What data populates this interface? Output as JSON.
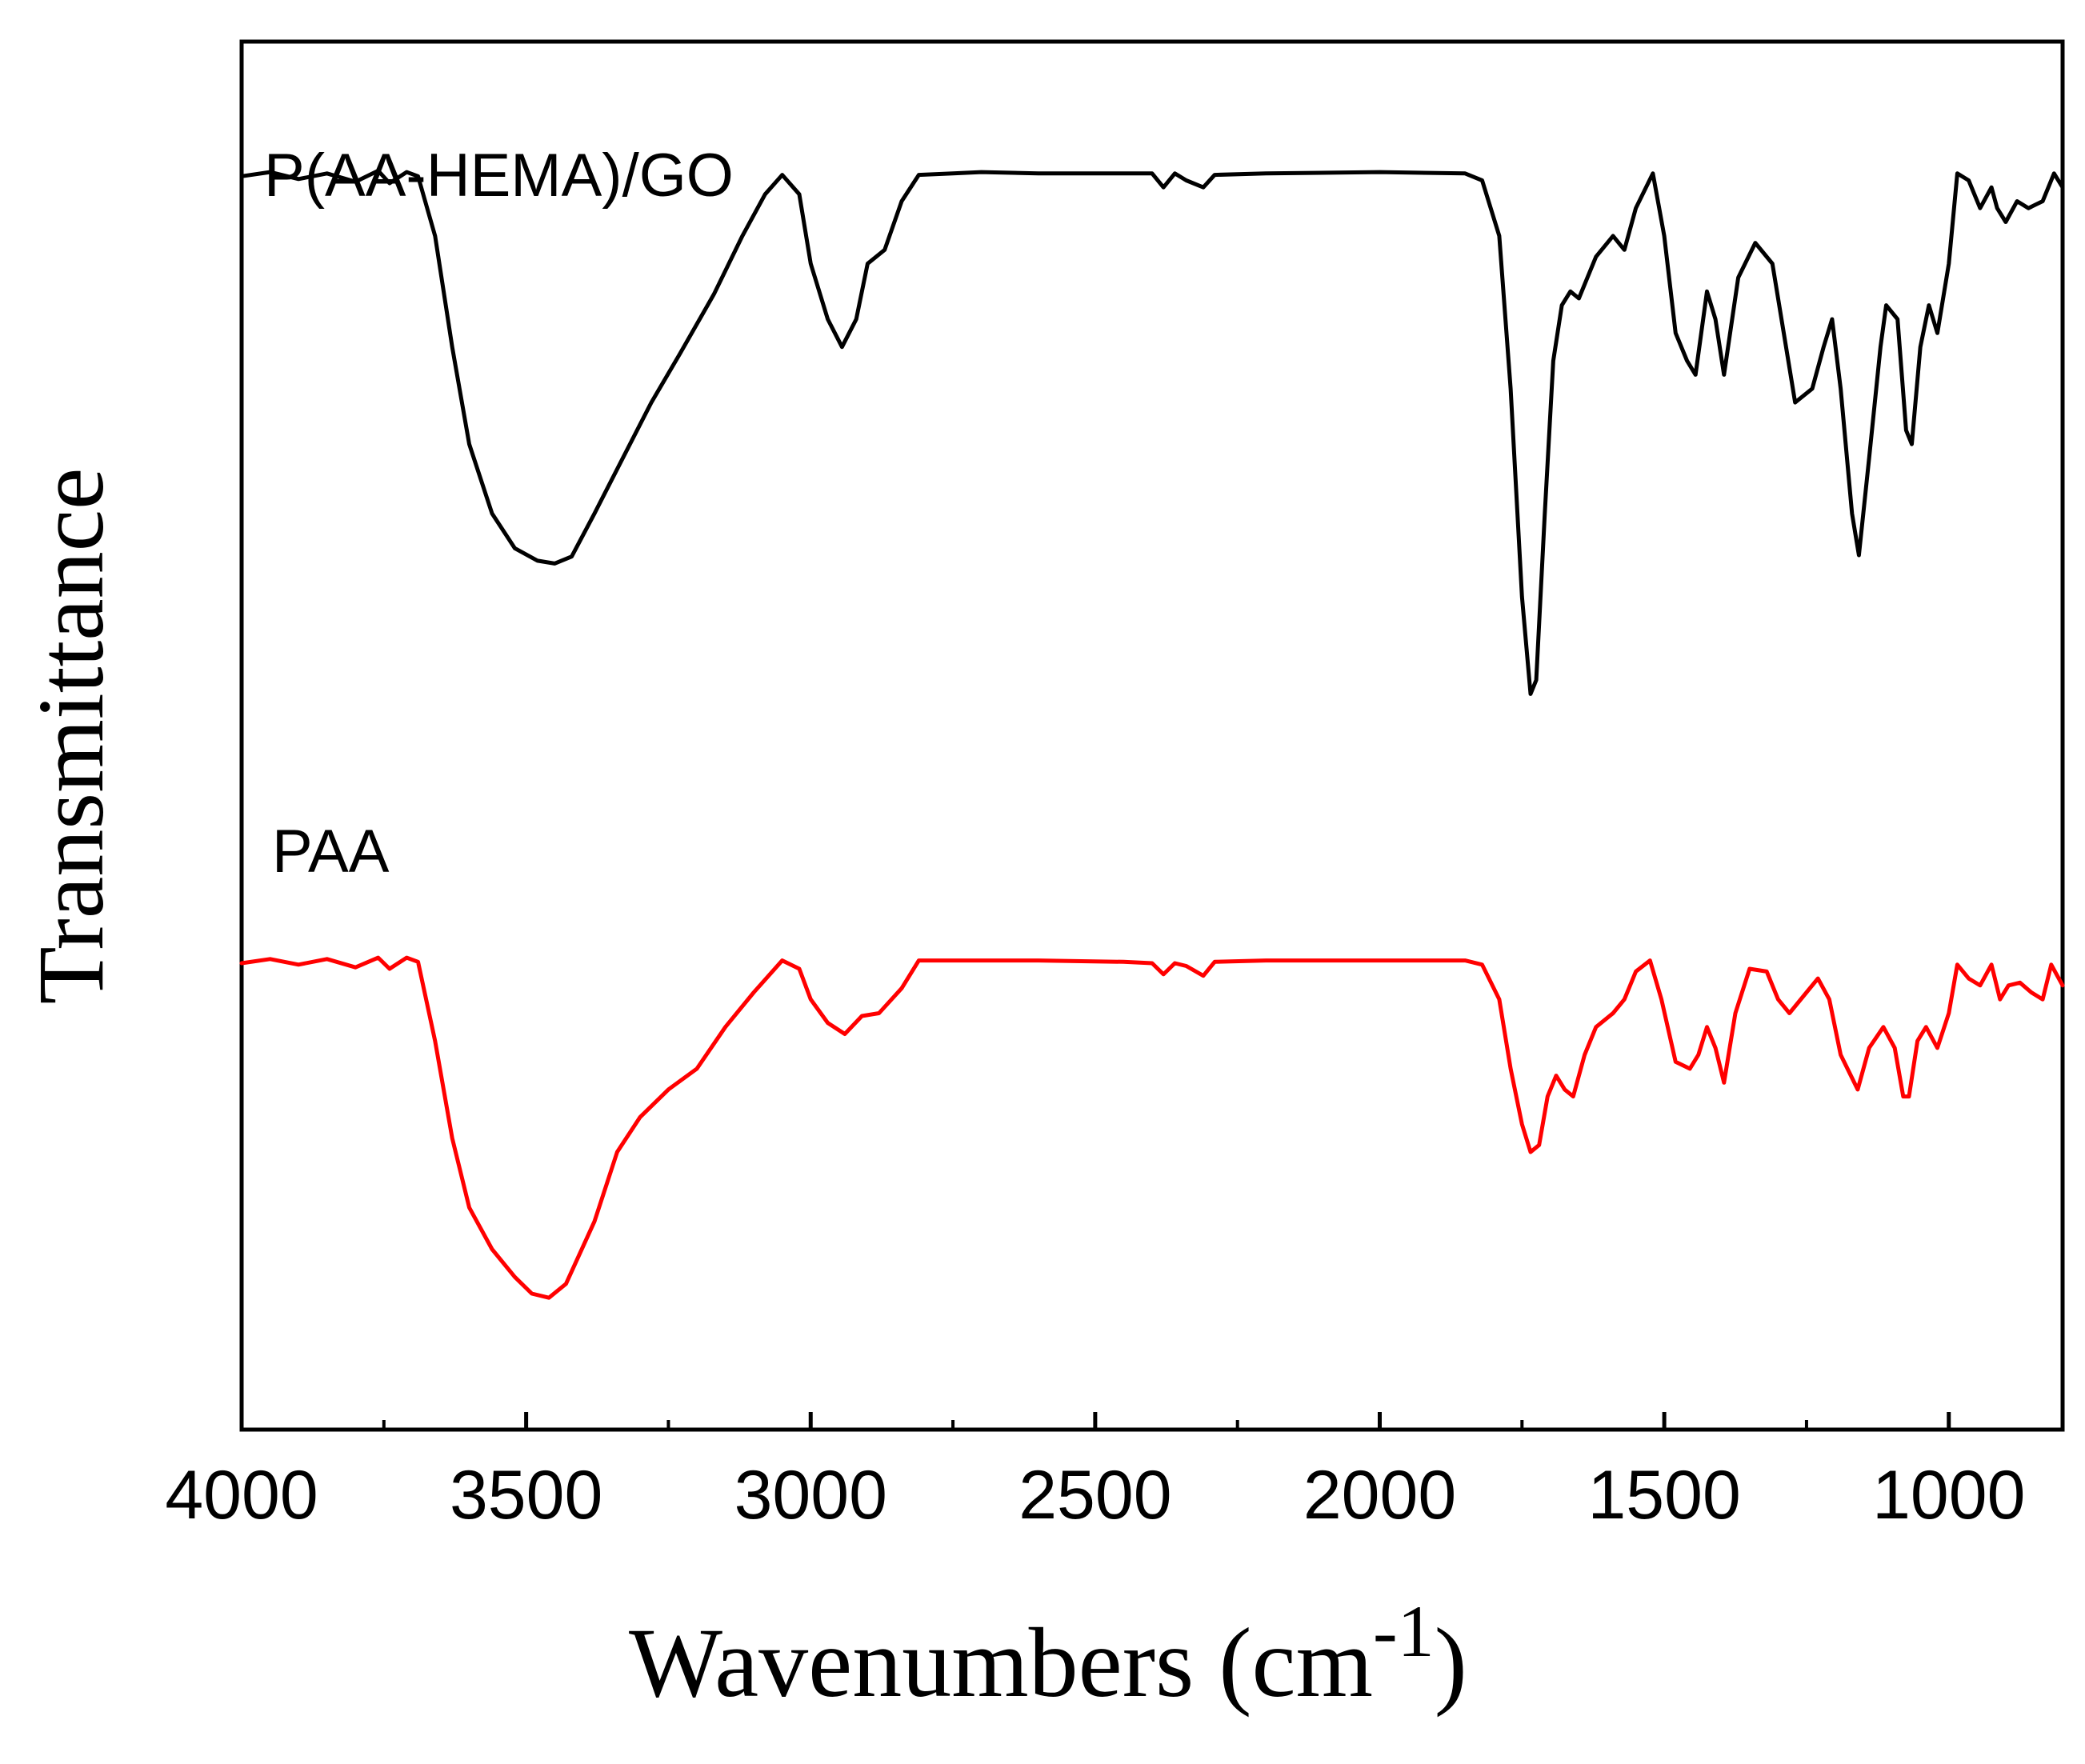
{
  "chart_data": {
    "type": "line",
    "title": "",
    "xlabel": "Wavenumbers (cm",
    "xlabel_superscript": "-1",
    "xlabel_close": ")",
    "ylabel": "Transmittance",
    "xlim": [
      4000,
      800
    ],
    "ylim": [
      0,
      1
    ],
    "x_ticks": [
      4000,
      3500,
      3000,
      2500,
      2000,
      1500,
      1000
    ],
    "x_tick_labels": [
      "4000",
      "3500",
      "3000",
      "2500",
      "2000",
      "1500",
      "1000"
    ],
    "y_ticks_shown": false,
    "grid": false,
    "series": [
      {
        "name": "P(AA-HEMA)/GO",
        "color": "#000000",
        "points": [
          [
            4000,
            0.903
          ],
          [
            3950,
            0.906
          ],
          [
            3900,
            0.901
          ],
          [
            3850,
            0.905
          ],
          [
            3800,
            0.899
          ],
          [
            3760,
            0.907
          ],
          [
            3740,
            0.898
          ],
          [
            3710,
            0.906
          ],
          [
            3690,
            0.903
          ],
          [
            3660,
            0.86
          ],
          [
            3630,
            0.78
          ],
          [
            3600,
            0.71
          ],
          [
            3560,
            0.66
          ],
          [
            3520,
            0.635
          ],
          [
            3480,
            0.626
          ],
          [
            3450,
            0.624
          ],
          [
            3420,
            0.629
          ],
          [
            3380,
            0.66
          ],
          [
            3330,
            0.7
          ],
          [
            3280,
            0.74
          ],
          [
            3230,
            0.775
          ],
          [
            3170,
            0.818
          ],
          [
            3120,
            0.86
          ],
          [
            3080,
            0.89
          ],
          [
            3050,
            0.904
          ],
          [
            3020,
            0.89
          ],
          [
            3000,
            0.84
          ],
          [
            2970,
            0.8
          ],
          [
            2945,
            0.78
          ],
          [
            2920,
            0.8
          ],
          [
            2900,
            0.84
          ],
          [
            2870,
            0.85
          ],
          [
            2840,
            0.885
          ],
          [
            2810,
            0.904
          ],
          [
            2750,
            0.905
          ],
          [
            2700,
            0.906
          ],
          [
            2600,
            0.905
          ],
          [
            2450,
            0.905
          ],
          [
            2400,
            0.905
          ],
          [
            2380,
            0.895
          ],
          [
            2360,
            0.905
          ],
          [
            2340,
            0.9
          ],
          [
            2310,
            0.895
          ],
          [
            2290,
            0.904
          ],
          [
            2200,
            0.905
          ],
          [
            2000,
            0.906
          ],
          [
            1850,
            0.905
          ],
          [
            1820,
            0.9
          ],
          [
            1790,
            0.86
          ],
          [
            1770,
            0.75
          ],
          [
            1750,
            0.6
          ],
          [
            1735,
            0.53
          ],
          [
            1725,
            0.54
          ],
          [
            1710,
            0.66
          ],
          [
            1695,
            0.77
          ],
          [
            1680,
            0.81
          ],
          [
            1665,
            0.82
          ],
          [
            1650,
            0.815
          ],
          [
            1620,
            0.845
          ],
          [
            1590,
            0.86
          ],
          [
            1570,
            0.85
          ],
          [
            1550,
            0.88
          ],
          [
            1520,
            0.905
          ],
          [
            1500,
            0.86
          ],
          [
            1480,
            0.79
          ],
          [
            1460,
            0.77
          ],
          [
            1445,
            0.76
          ],
          [
            1425,
            0.82
          ],
          [
            1410,
            0.8
          ],
          [
            1395,
            0.76
          ],
          [
            1370,
            0.83
          ],
          [
            1340,
            0.855
          ],
          [
            1310,
            0.84
          ],
          [
            1290,
            0.79
          ],
          [
            1270,
            0.74
          ],
          [
            1240,
            0.75
          ],
          [
            1220,
            0.78
          ],
          [
            1205,
            0.8
          ],
          [
            1190,
            0.75
          ],
          [
            1170,
            0.66
          ],
          [
            1158,
            0.63
          ],
          [
            1140,
            0.7
          ],
          [
            1120,
            0.78
          ],
          [
            1110,
            0.81
          ],
          [
            1090,
            0.8
          ],
          [
            1075,
            0.72
          ],
          [
            1065,
            0.71
          ],
          [
            1050,
            0.78
          ],
          [
            1035,
            0.81
          ],
          [
            1020,
            0.79
          ],
          [
            1000,
            0.84
          ],
          [
            985,
            0.905
          ],
          [
            965,
            0.9
          ],
          [
            945,
            0.88
          ],
          [
            925,
            0.895
          ],
          [
            915,
            0.88
          ],
          [
            900,
            0.87
          ],
          [
            880,
            0.885
          ],
          [
            860,
            0.88
          ],
          [
            835,
            0.885
          ],
          [
            815,
            0.905
          ],
          [
            800,
            0.895
          ]
        ]
      },
      {
        "name": "PAA",
        "color": "#ff0000",
        "points": [
          [
            4000,
            0.336
          ],
          [
            3950,
            0.339
          ],
          [
            3900,
            0.335
          ],
          [
            3850,
            0.339
          ],
          [
            3800,
            0.333
          ],
          [
            3760,
            0.34
          ],
          [
            3740,
            0.332
          ],
          [
            3710,
            0.34
          ],
          [
            3690,
            0.337
          ],
          [
            3660,
            0.28
          ],
          [
            3630,
            0.21
          ],
          [
            3600,
            0.16
          ],
          [
            3560,
            0.13
          ],
          [
            3520,
            0.11
          ],
          [
            3490,
            0.098
          ],
          [
            3460,
            0.095
          ],
          [
            3430,
            0.105
          ],
          [
            3380,
            0.15
          ],
          [
            3340,
            0.2
          ],
          [
            3300,
            0.225
          ],
          [
            3250,
            0.245
          ],
          [
            3200,
            0.26
          ],
          [
            3150,
            0.29
          ],
          [
            3100,
            0.315
          ],
          [
            3050,
            0.338
          ],
          [
            3020,
            0.332
          ],
          [
            3000,
            0.31
          ],
          [
            2970,
            0.293
          ],
          [
            2940,
            0.285
          ],
          [
            2910,
            0.298
          ],
          [
            2880,
            0.3
          ],
          [
            2840,
            0.318
          ],
          [
            2810,
            0.338
          ],
          [
            2750,
            0.338
          ],
          [
            2600,
            0.338
          ],
          [
            2450,
            0.337
          ],
          [
            2400,
            0.336
          ],
          [
            2380,
            0.328
          ],
          [
            2360,
            0.336
          ],
          [
            2340,
            0.334
          ],
          [
            2310,
            0.327
          ],
          [
            2290,
            0.337
          ],
          [
            2200,
            0.338
          ],
          [
            2000,
            0.338
          ],
          [
            1850,
            0.338
          ],
          [
            1820,
            0.335
          ],
          [
            1790,
            0.31
          ],
          [
            1770,
            0.26
          ],
          [
            1750,
            0.22
          ],
          [
            1735,
            0.2
          ],
          [
            1720,
            0.205
          ],
          [
            1705,
            0.24
          ],
          [
            1690,
            0.255
          ],
          [
            1675,
            0.245
          ],
          [
            1660,
            0.24
          ],
          [
            1640,
            0.27
          ],
          [
            1620,
            0.29
          ],
          [
            1590,
            0.3
          ],
          [
            1570,
            0.31
          ],
          [
            1550,
            0.33
          ],
          [
            1525,
            0.338
          ],
          [
            1505,
            0.31
          ],
          [
            1480,
            0.265
          ],
          [
            1455,
            0.26
          ],
          [
            1440,
            0.27
          ],
          [
            1425,
            0.29
          ],
          [
            1410,
            0.275
          ],
          [
            1395,
            0.25
          ],
          [
            1375,
            0.3
          ],
          [
            1350,
            0.332
          ],
          [
            1320,
            0.33
          ],
          [
            1300,
            0.31
          ],
          [
            1280,
            0.3
          ],
          [
            1250,
            0.315
          ],
          [
            1230,
            0.325
          ],
          [
            1210,
            0.31
          ],
          [
            1190,
            0.27
          ],
          [
            1160,
            0.245
          ],
          [
            1140,
            0.275
          ],
          [
            1115,
            0.29
          ],
          [
            1095,
            0.275
          ],
          [
            1080,
            0.24
          ],
          [
            1070,
            0.24
          ],
          [
            1055,
            0.28
          ],
          [
            1040,
            0.29
          ],
          [
            1020,
            0.275
          ],
          [
            1000,
            0.3
          ],
          [
            985,
            0.335
          ],
          [
            965,
            0.325
          ],
          [
            945,
            0.32
          ],
          [
            925,
            0.335
          ],
          [
            910,
            0.31
          ],
          [
            895,
            0.32
          ],
          [
            875,
            0.322
          ],
          [
            855,
            0.315
          ],
          [
            835,
            0.31
          ],
          [
            820,
            0.335
          ],
          [
            800,
            0.32
          ]
        ]
      }
    ],
    "annotations": [
      {
        "text": "P(AA-HEMA)/GO",
        "series": "P(AA-HEMA)/GO"
      },
      {
        "text": "PAA",
        "series": "PAA"
      }
    ]
  }
}
